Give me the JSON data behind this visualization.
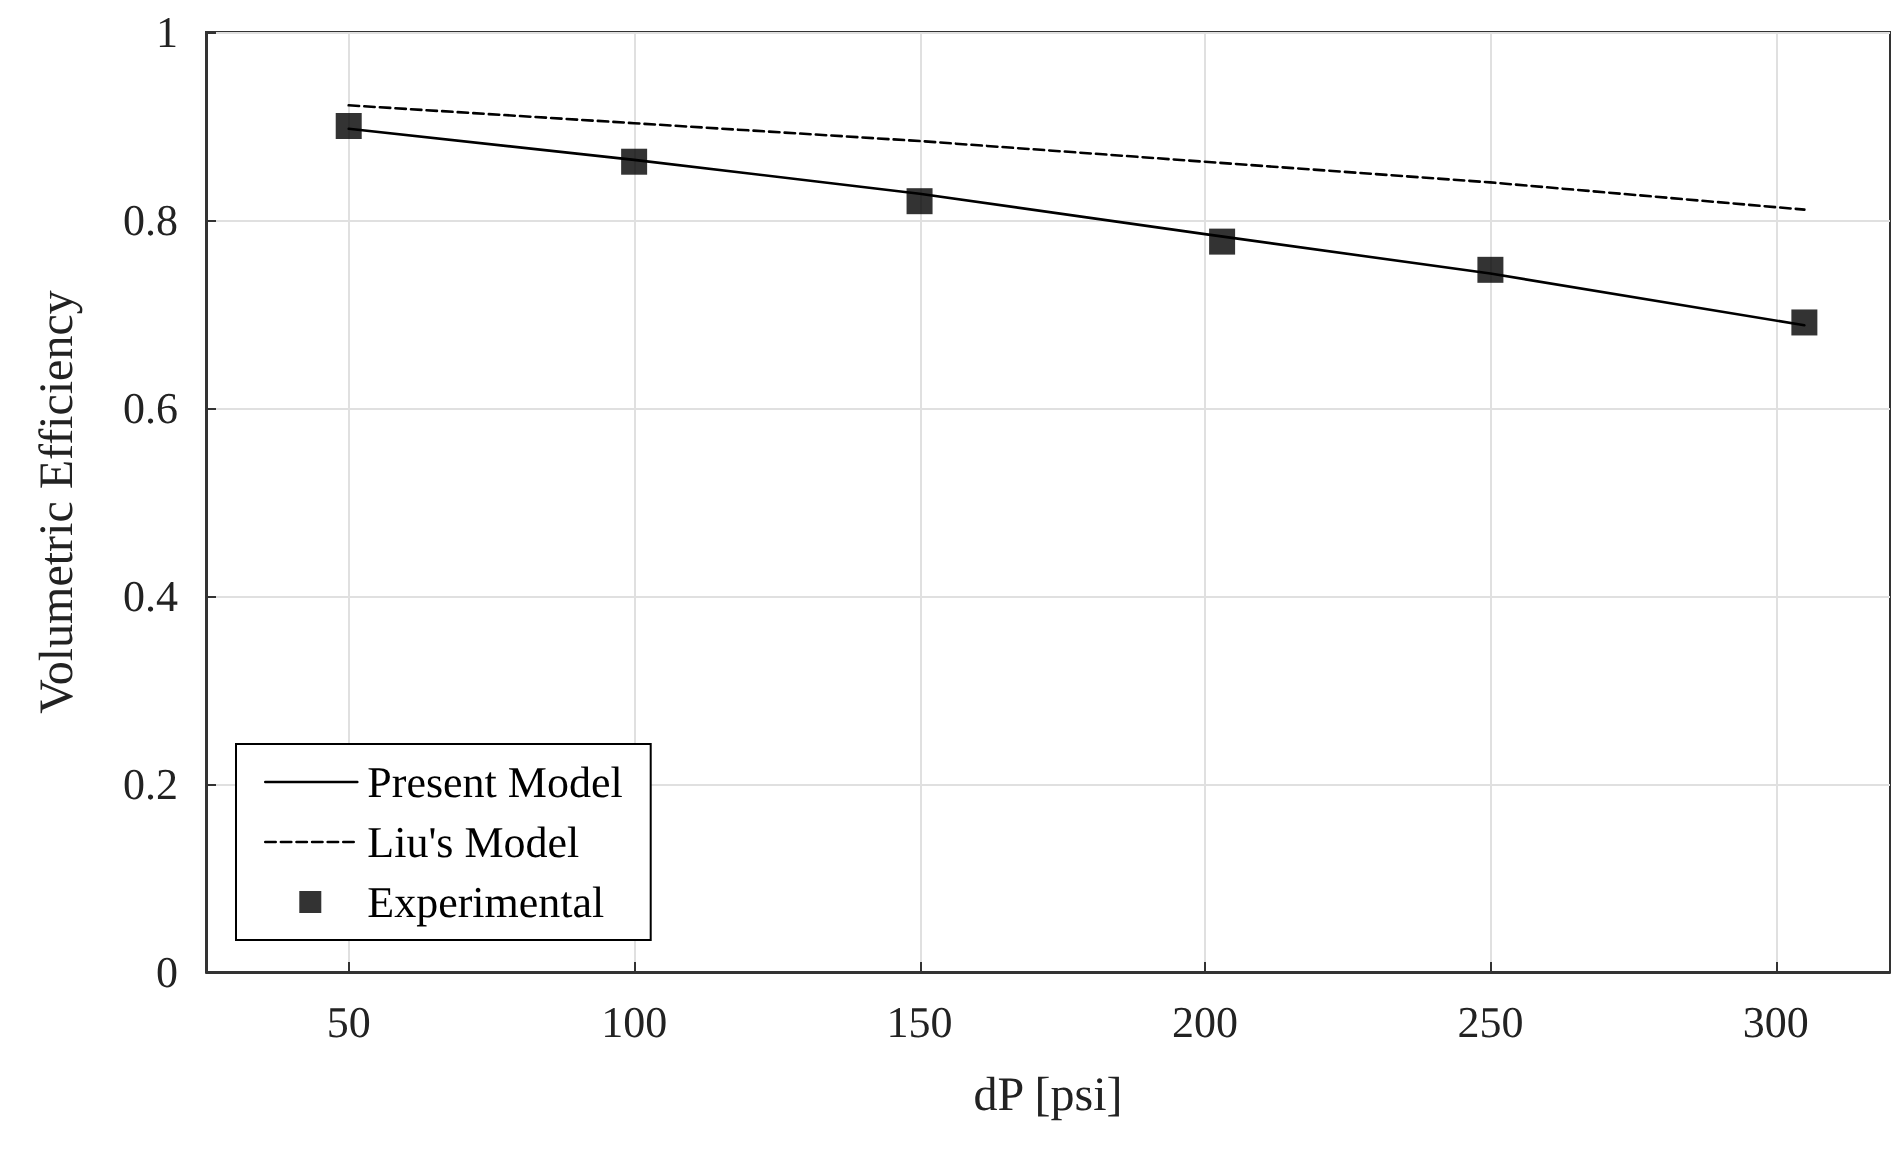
{
  "chart_data": {
    "type": "line",
    "xlabel": "dP [psi]",
    "ylabel": "Volumetric Efficiency",
    "xlim": [
      25,
      320
    ],
    "xticks": [
      50,
      100,
      150,
      200,
      250,
      300
    ],
    "ylim": [
      0,
      1
    ],
    "yticks": [
      0,
      0.2,
      0.4,
      0.6,
      0.8,
      1
    ],
    "grid": true,
    "legend": "bottom left",
    "series": [
      {
        "name": "Present Model",
        "type": "line",
        "color": "#000000",
        "line_style": "solid",
        "marker": "none",
        "x": [
          50,
          100,
          150,
          200,
          250,
          305
        ],
        "values": [
          0.897,
          0.864,
          0.828,
          0.785,
          0.743,
          0.688
        ]
      },
      {
        "name": "Liu's Model",
        "type": "line",
        "color": "#000000",
        "line_style": "dashed",
        "marker": "none",
        "x": [
          50,
          100,
          150,
          200,
          250,
          305
        ],
        "values": [
          0.922,
          0.903,
          0.884,
          0.862,
          0.84,
          0.811
        ]
      },
      {
        "name": "Experimental",
        "type": "scatter",
        "color": "#000000",
        "marker": "square",
        "x": [
          50,
          100,
          150,
          203,
          250,
          305
        ],
        "values": [
          0.9,
          0.862,
          0.82,
          0.777,
          0.747,
          0.691
        ]
      }
    ]
  }
}
